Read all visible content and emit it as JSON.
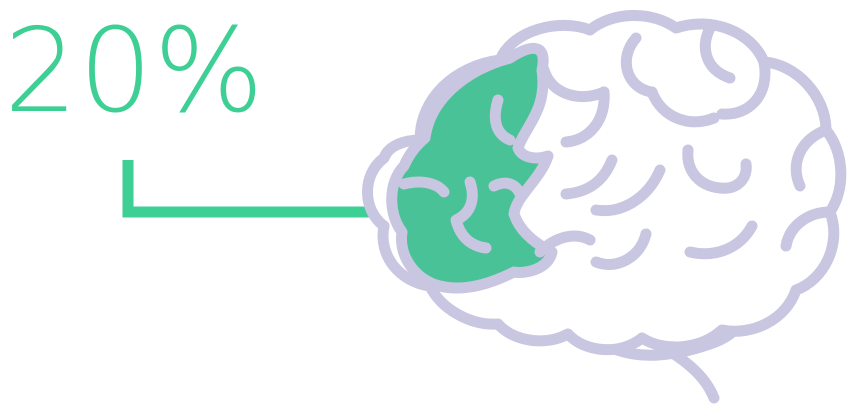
{
  "stat": {
    "value": "20%"
  },
  "icons": {
    "connector": "bracket-line",
    "brain": "brain-icon"
  },
  "colors": {
    "accent": "#3ecf95",
    "highlight_fill": "#48c296",
    "outline": "#c8c6e0",
    "background": "#ffffff"
  },
  "highlight_fraction": 0.2
}
